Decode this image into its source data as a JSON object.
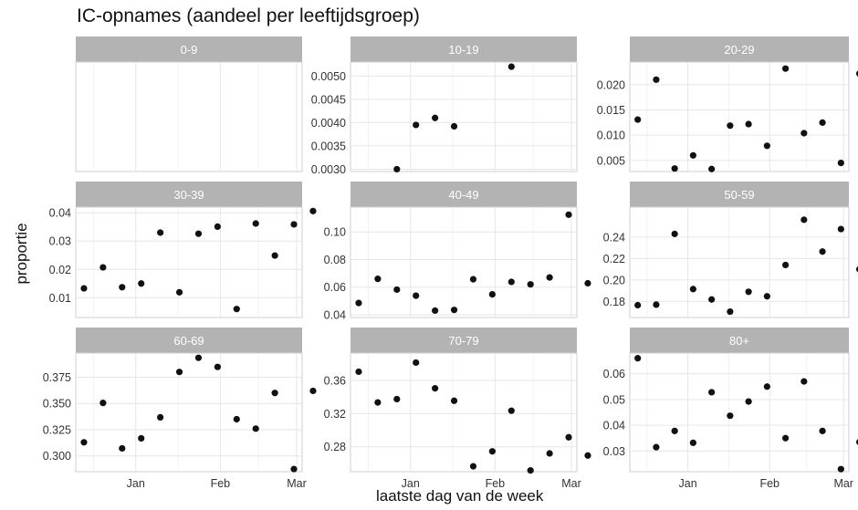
{
  "chart_data": {
    "type": "scatter",
    "title": "IC-opnames (aandeel per leeftijdsgroep)",
    "xlabel": "laatste dag van de week",
    "ylabel": "proportie",
    "x_tick_labels": [
      "Jan",
      "Feb",
      "Mar"
    ],
    "x_range": [
      "2020-12-10",
      "2021-03-03"
    ],
    "x_ticks": [
      "2021-01-01",
      "2021-02-01",
      "2021-03-01"
    ],
    "grid": true,
    "panels": [
      {
        "name": "0-9",
        "ylim": [
          0,
          1
        ],
        "yticks": [],
        "yticklabels": [],
        "points": []
      },
      {
        "name": "10-19",
        "ylim": [
          0.00295,
          0.0053
        ],
        "yticks": [
          0.003,
          0.0035,
          0.004,
          0.0045,
          0.005
        ],
        "yticklabels": [
          "0.0030",
          "0.0035",
          "0.0040",
          "0.0045",
          "0.0050"
        ],
        "points": [
          {
            "x": "2020-12-27",
            "y": 0.003
          },
          {
            "x": "2021-01-03",
            "y": 0.00395
          },
          {
            "x": "2021-01-10",
            "y": 0.0041
          },
          {
            "x": "2021-01-17",
            "y": 0.00392
          },
          {
            "x": "2021-02-07",
            "y": 0.0052
          }
        ]
      },
      {
        "name": "20-29",
        "ylim": [
          0.0028,
          0.0245
        ],
        "yticks": [
          0.005,
          0.01,
          0.015,
          0.02
        ],
        "yticklabels": [
          "0.005",
          "0.010",
          "0.015",
          "0.020"
        ],
        "points": [
          {
            "x": "2020-12-13",
            "y": 0.0131
          },
          {
            "x": "2020-12-20",
            "y": 0.021
          },
          {
            "x": "2020-12-27",
            "y": 0.0034
          },
          {
            "x": "2021-01-03",
            "y": 0.006
          },
          {
            "x": "2021-01-10",
            "y": 0.0033
          },
          {
            "x": "2021-01-17",
            "y": 0.0119
          },
          {
            "x": "2021-01-24",
            "y": 0.0122
          },
          {
            "x": "2021-01-31",
            "y": 0.0079
          },
          {
            "x": "2021-02-07",
            "y": 0.0232
          },
          {
            "x": "2021-02-14",
            "y": 0.0104
          },
          {
            "x": "2021-02-21",
            "y": 0.0125
          },
          {
            "x": "2021-02-28",
            "y": 0.0045
          },
          {
            "x": "2021-03-07",
            "y": 0.0222
          }
        ]
      },
      {
        "name": "30-39",
        "ylim": [
          0.003,
          0.042
        ],
        "yticks": [
          0.01,
          0.02,
          0.03,
          0.04
        ],
        "yticklabels": [
          "0.01",
          "0.02",
          "0.03",
          "0.04"
        ],
        "points": [
          {
            "x": "2020-12-13",
            "y": 0.0133
          },
          {
            "x": "2020-12-20",
            "y": 0.0207
          },
          {
            "x": "2020-12-27",
            "y": 0.0137
          },
          {
            "x": "2021-01-03",
            "y": 0.015
          },
          {
            "x": "2021-01-10",
            "y": 0.033
          },
          {
            "x": "2021-01-17",
            "y": 0.0119
          },
          {
            "x": "2021-01-24",
            "y": 0.0326
          },
          {
            "x": "2021-01-31",
            "y": 0.0351
          },
          {
            "x": "2021-02-07",
            "y": 0.006
          },
          {
            "x": "2021-02-14",
            "y": 0.0362
          },
          {
            "x": "2021-02-21",
            "y": 0.0249
          },
          {
            "x": "2021-02-28",
            "y": 0.0359
          },
          {
            "x": "2021-03-07",
            "y": 0.0406
          }
        ]
      },
      {
        "name": "40-49",
        "ylim": [
          0.038,
          0.118
        ],
        "yticks": [
          0.04,
          0.06,
          0.08,
          0.1
        ],
        "yticklabels": [
          "0.04",
          "0.06",
          "0.08",
          "0.10"
        ],
        "points": [
          {
            "x": "2020-12-13",
            "y": 0.0485
          },
          {
            "x": "2020-12-20",
            "y": 0.066
          },
          {
            "x": "2020-12-27",
            "y": 0.0582
          },
          {
            "x": "2021-01-03",
            "y": 0.0538
          },
          {
            "x": "2021-01-10",
            "y": 0.043
          },
          {
            "x": "2021-01-17",
            "y": 0.0435
          },
          {
            "x": "2021-01-24",
            "y": 0.0657
          },
          {
            "x": "2021-01-31",
            "y": 0.0548
          },
          {
            "x": "2021-02-07",
            "y": 0.0638
          },
          {
            "x": "2021-02-14",
            "y": 0.062
          },
          {
            "x": "2021-02-21",
            "y": 0.067
          },
          {
            "x": "2021-02-28",
            "y": 0.1125
          },
          {
            "x": "2021-03-07",
            "y": 0.0628
          }
        ]
      },
      {
        "name": "50-59",
        "ylim": [
          0.165,
          0.268
        ],
        "yticks": [
          0.18,
          0.2,
          0.22,
          0.24
        ],
        "yticklabels": [
          "0.18",
          "0.20",
          "0.22",
          "0.24"
        ],
        "points": [
          {
            "x": "2020-12-13",
            "y": 0.1765
          },
          {
            "x": "2020-12-20",
            "y": 0.177
          },
          {
            "x": "2020-12-27",
            "y": 0.243
          },
          {
            "x": "2021-01-03",
            "y": 0.1915
          },
          {
            "x": "2021-01-10",
            "y": 0.1818
          },
          {
            "x": "2021-01-17",
            "y": 0.1705
          },
          {
            "x": "2021-01-24",
            "y": 0.189
          },
          {
            "x": "2021-01-31",
            "y": 0.1848
          },
          {
            "x": "2021-02-07",
            "y": 0.214
          },
          {
            "x": "2021-02-14",
            "y": 0.2562
          },
          {
            "x": "2021-02-21",
            "y": 0.2265
          },
          {
            "x": "2021-02-28",
            "y": 0.2475
          },
          {
            "x": "2021-03-07",
            "y": 0.21
          }
        ]
      },
      {
        "name": "60-69",
        "ylim": [
          0.285,
          0.398
        ],
        "yticks": [
          0.3,
          0.325,
          0.35,
          0.375
        ],
        "yticklabels": [
          "0.300",
          "0.325",
          "0.350",
          "0.375"
        ],
        "points": [
          {
            "x": "2020-12-13",
            "y": 0.313
          },
          {
            "x": "2020-12-20",
            "y": 0.3505
          },
          {
            "x": "2020-12-27",
            "y": 0.3072
          },
          {
            "x": "2021-01-03",
            "y": 0.3168
          },
          {
            "x": "2021-01-10",
            "y": 0.3368
          },
          {
            "x": "2021-01-17",
            "y": 0.38
          },
          {
            "x": "2021-01-24",
            "y": 0.3935
          },
          {
            "x": "2021-01-31",
            "y": 0.3848
          },
          {
            "x": "2021-02-07",
            "y": 0.335
          },
          {
            "x": "2021-02-14",
            "y": 0.326
          },
          {
            "x": "2021-02-21",
            "y": 0.36
          },
          {
            "x": "2021-02-28",
            "y": 0.2875
          },
          {
            "x": "2021-03-07",
            "y": 0.362
          }
        ]
      },
      {
        "name": "70-79",
        "ylim": [
          0.25,
          0.393
        ],
        "yticks": [
          0.28,
          0.32,
          0.36
        ],
        "yticklabels": [
          "0.28",
          "0.32",
          "0.36"
        ],
        "points": [
          {
            "x": "2020-12-13",
            "y": 0.3705
          },
          {
            "x": "2020-12-20",
            "y": 0.3335
          },
          {
            "x": "2020-12-27",
            "y": 0.3375
          },
          {
            "x": "2021-01-03",
            "y": 0.3815
          },
          {
            "x": "2021-01-10",
            "y": 0.3505
          },
          {
            "x": "2021-01-17",
            "y": 0.3355
          },
          {
            "x": "2021-01-24",
            "y": 0.2565
          },
          {
            "x": "2021-01-31",
            "y": 0.2745
          },
          {
            "x": "2021-02-07",
            "y": 0.3235
          },
          {
            "x": "2021-02-14",
            "y": 0.2515
          },
          {
            "x": "2021-02-21",
            "y": 0.272
          },
          {
            "x": "2021-02-28",
            "y": 0.2915
          },
          {
            "x": "2021-03-07",
            "y": 0.2695
          }
        ]
      },
      {
        "name": "80+",
        "ylim": [
          0.022,
          0.068
        ],
        "yticks": [
          0.03,
          0.04,
          0.05,
          0.06
        ],
        "yticklabels": [
          "0.03",
          "0.04",
          "0.05",
          "0.06"
        ],
        "points": [
          {
            "x": "2020-12-13",
            "y": 0.066
          },
          {
            "x": "2020-12-20",
            "y": 0.0315
          },
          {
            "x": "2020-12-27",
            "y": 0.0378
          },
          {
            "x": "2021-01-03",
            "y": 0.0332
          },
          {
            "x": "2021-01-10",
            "y": 0.0528
          },
          {
            "x": "2021-01-17",
            "y": 0.0437
          },
          {
            "x": "2021-01-24",
            "y": 0.0492
          },
          {
            "x": "2021-01-31",
            "y": 0.055
          },
          {
            "x": "2021-02-07",
            "y": 0.035
          },
          {
            "x": "2021-02-14",
            "y": 0.057
          },
          {
            "x": "2021-02-21",
            "y": 0.0378
          },
          {
            "x": "2021-02-28",
            "y": 0.023
          },
          {
            "x": "2021-03-07",
            "y": 0.0335
          }
        ]
      }
    ]
  },
  "colors": {
    "strip": "#b3b3b3",
    "strip_text": "#ffffff",
    "grid": "#e6e6e6",
    "panel_border": "#cfcfcf",
    "point": "#111111",
    "tick_text": "#333333"
  }
}
